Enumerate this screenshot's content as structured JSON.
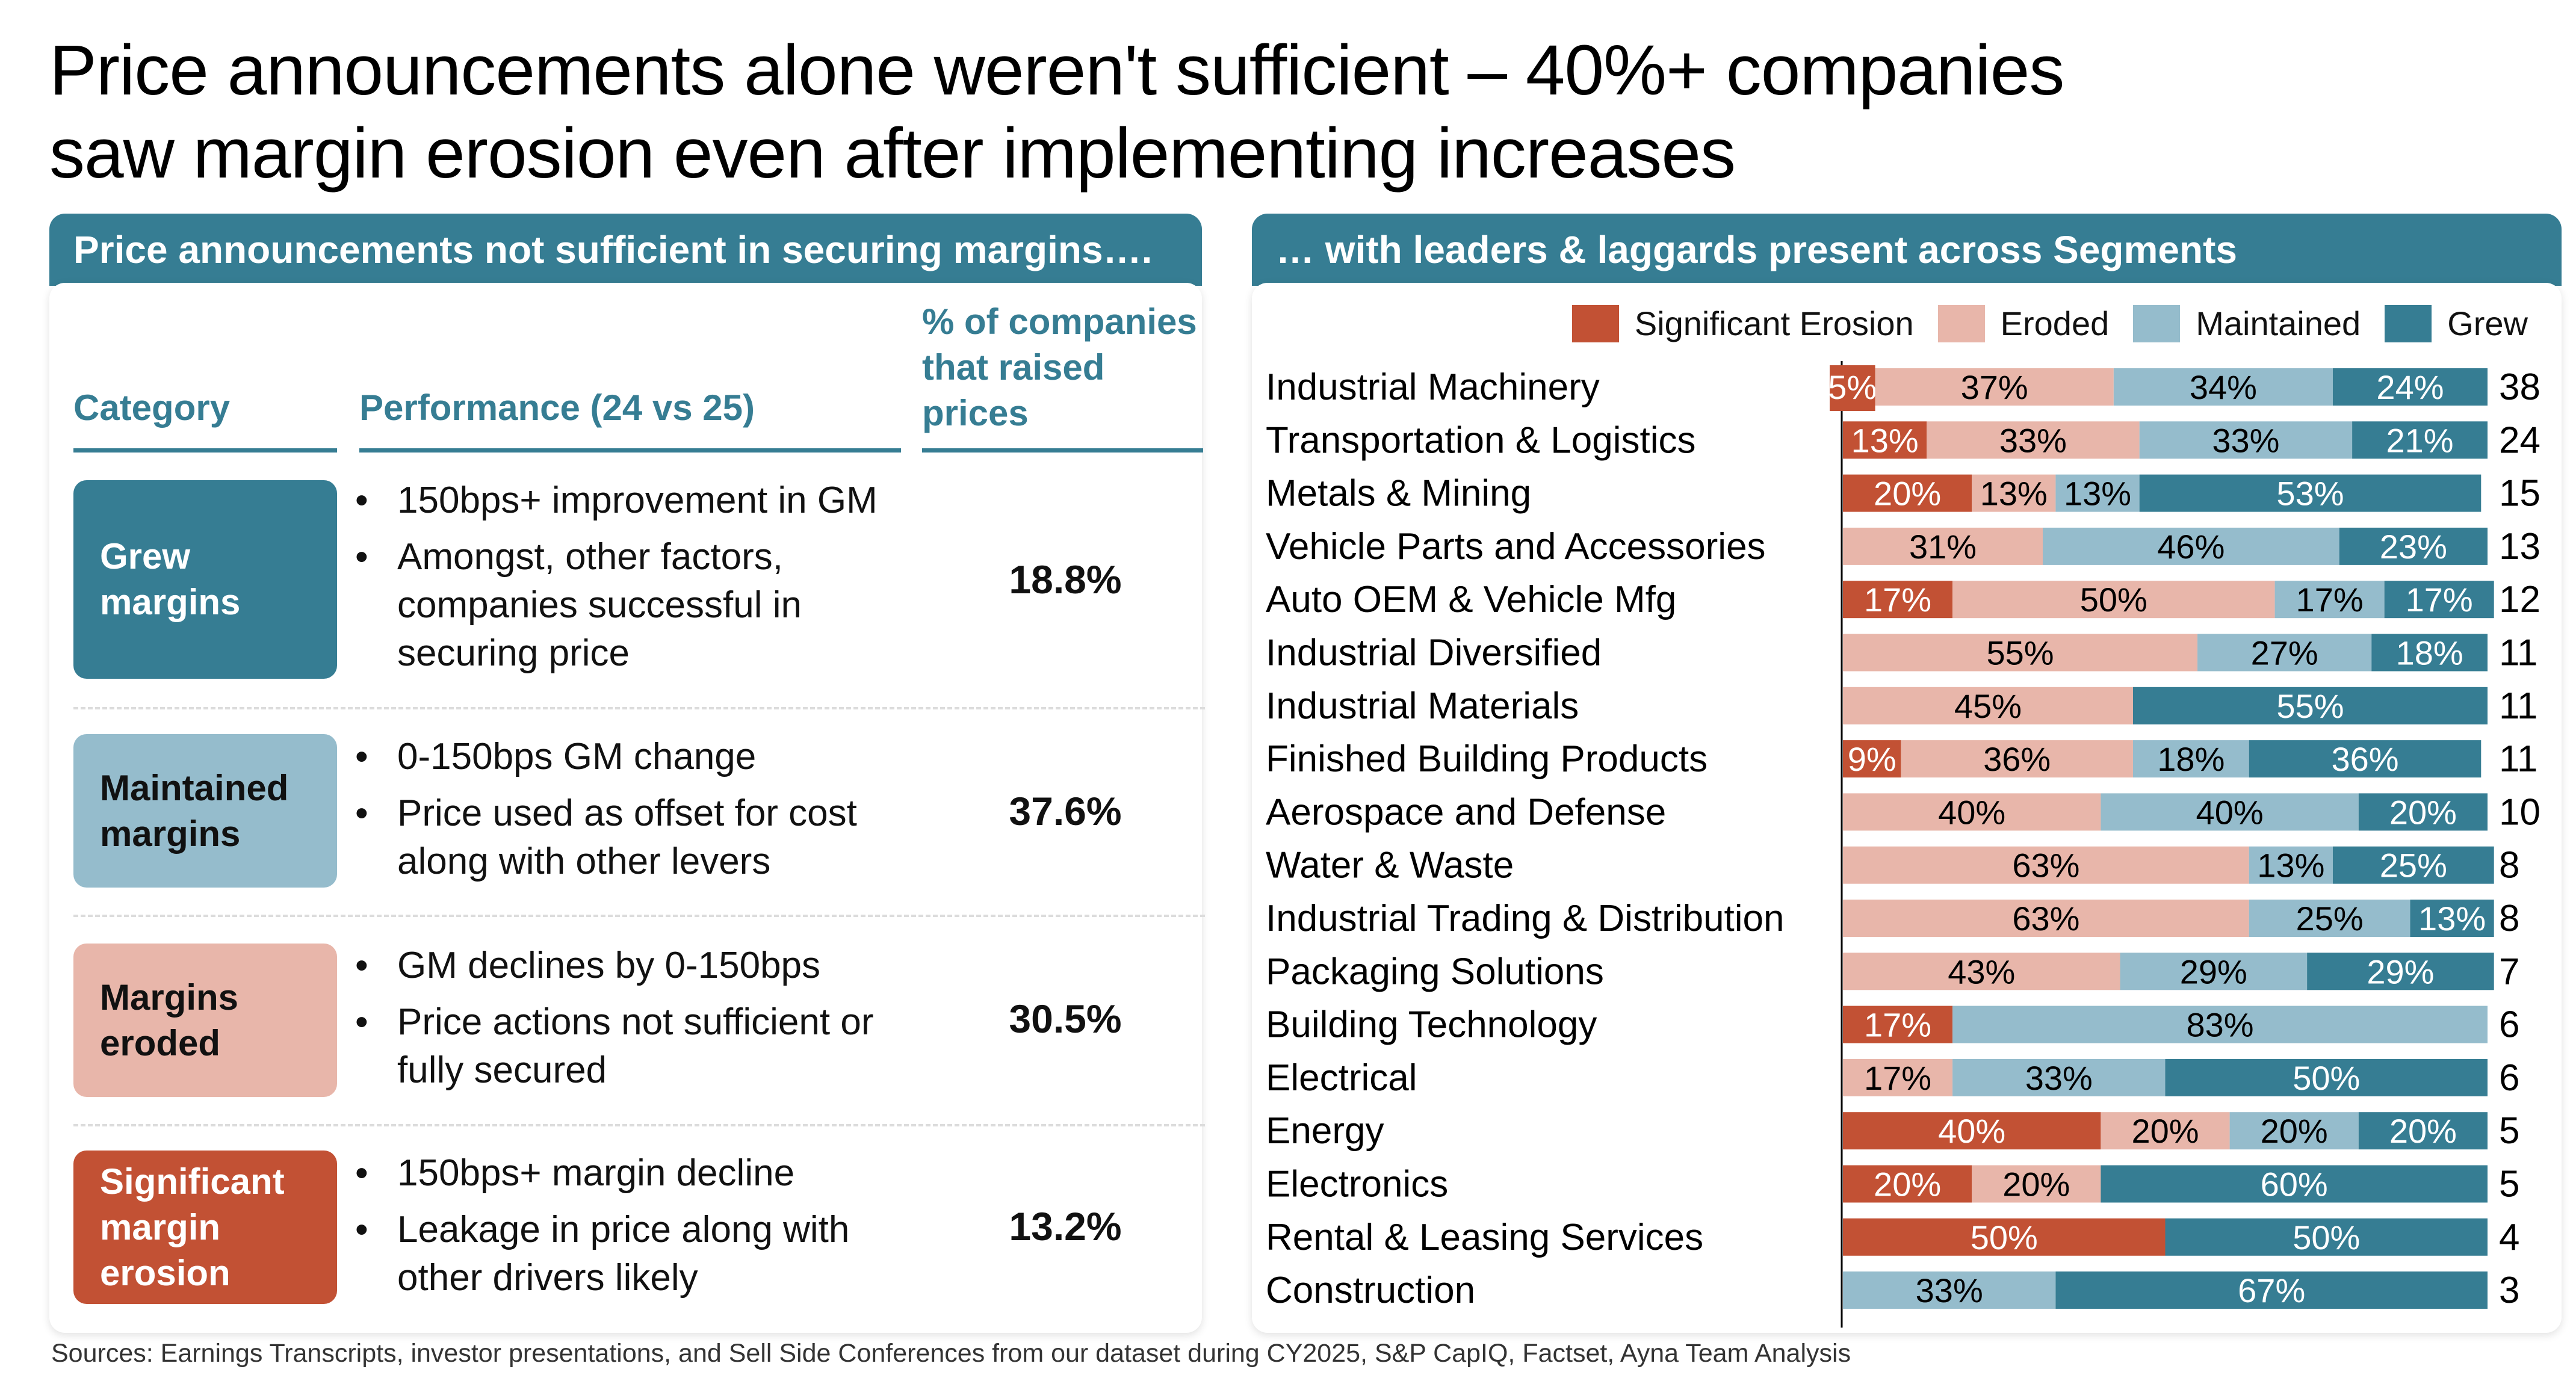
{
  "title": {
    "line1": "Price announcements alone weren't sufficient – 40%+ companies",
    "line2": "saw margin erosion even after implementing increases"
  },
  "left_panel": {
    "header": "Price announcements not sufficient in securing margins….",
    "columns": {
      "category": "Category",
      "performance": "Performance (24 vs 25)",
      "pct_line1": "% of companies",
      "pct_line2": "that raised",
      "pct_line3": "prices"
    },
    "rows": [
      {
        "category_line1": "Grew",
        "category_line2": "margins",
        "category_line3": "",
        "bullets": [
          "150bps+ improvement in GM",
          "Amongst, other factors, companies successful in securing price"
        ],
        "pct": "18.8%"
      },
      {
        "category_line1": "Maintained",
        "category_line2": "margins",
        "category_line3": "",
        "bullets": [
          "0-150bps GM change",
          "Price used as offset for cost along with other levers"
        ],
        "pct": "37.6%"
      },
      {
        "category_line1": "Margins",
        "category_line2": "eroded",
        "category_line3": "",
        "bullets": [
          "GM declines by 0-150bps",
          "Price actions not sufficient or fully secured"
        ],
        "pct": "30.5%"
      },
      {
        "category_line1": "Significant",
        "category_line2": "margin",
        "category_line3": "erosion",
        "bullets": [
          "150bps+ margin decline",
          "Leakage in price along with other drivers likely"
        ],
        "pct": "13.2%"
      }
    ]
  },
  "right_panel": {
    "header": "… with leaders & laggards present across Segments"
  },
  "colors": {
    "teal": "#367d93",
    "significant_erosion": "#c25134",
    "eroded": "#e8b6aa",
    "maintained": "#95bccc",
    "grew": "#367d93"
  },
  "chart_data": {
    "type": "bar",
    "orientation": "horizontal",
    "stacked": true,
    "normalized": "percent",
    "title": "… with leaders & laggards present across Segments",
    "legend": [
      "Significant Erosion",
      "Eroded",
      "Maintained",
      "Grew"
    ],
    "legend_position": "top-right",
    "categories": [
      "Industrial Machinery",
      "Transportation & Logistics",
      "Metals & Mining",
      "Vehicle Parts and Accessories",
      "Auto OEM & Vehicle Mfg",
      "Industrial Diversified",
      "Industrial Materials",
      "Finished Building Products",
      "Aerospace and Defense",
      "Water & Waste",
      "Industrial Trading & Distribution",
      "Packaging Solutions",
      "Building Technology",
      "Electrical",
      "Energy",
      "Electronics",
      "Rental & Leasing Services",
      "Construction"
    ],
    "series": [
      {
        "name": "Significant Erosion",
        "values": [
          5,
          13,
          20,
          0,
          17,
          0,
          0,
          9,
          0,
          0,
          0,
          0,
          17,
          0,
          40,
          20,
          50,
          0
        ]
      },
      {
        "name": "Eroded",
        "values": [
          37,
          33,
          13,
          31,
          50,
          55,
          45,
          36,
          40,
          63,
          63,
          43,
          0,
          17,
          20,
          20,
          0,
          0
        ]
      },
      {
        "name": "Maintained",
        "values": [
          34,
          33,
          13,
          46,
          17,
          27,
          0,
          18,
          40,
          13,
          25,
          29,
          83,
          33,
          20,
          0,
          0,
          33
        ]
      },
      {
        "name": "Grew",
        "values": [
          24,
          21,
          53,
          23,
          17,
          18,
          55,
          36,
          20,
          25,
          13,
          29,
          0,
          50,
          20,
          60,
          50,
          67
        ]
      }
    ],
    "totals": [
      38,
      24,
      15,
      13,
      12,
      11,
      11,
      11,
      10,
      8,
      8,
      7,
      6,
      6,
      5,
      5,
      4,
      3
    ],
    "value_suffix": "%",
    "xlim": [
      0,
      100
    ],
    "grid": false
  },
  "sources": "Sources: Earnings Transcripts, investor presentations, and Sell Side Conferences from our dataset during CY2025, S&P CapIQ, Factset, Ayna Team Analysis"
}
